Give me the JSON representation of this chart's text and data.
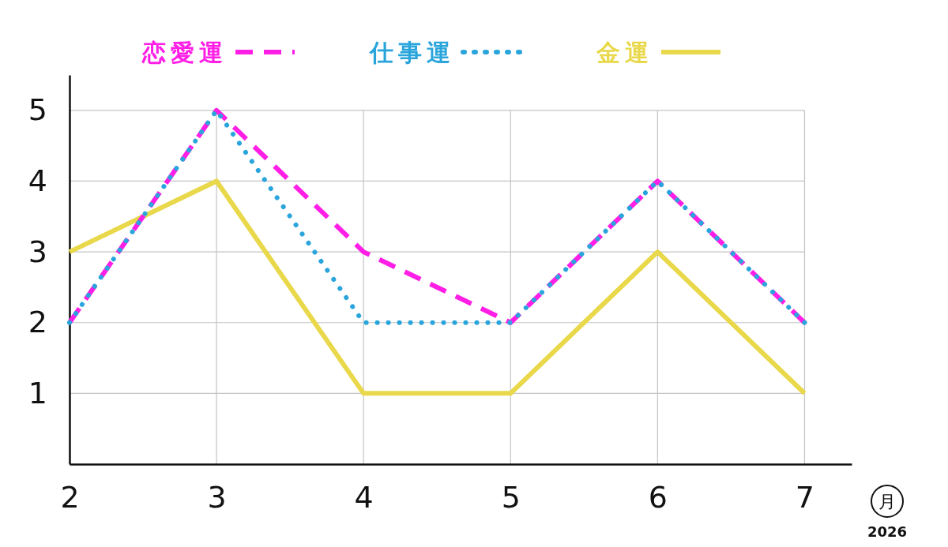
{
  "chart_data": {
    "type": "line",
    "xlabel": "月",
    "annotations": [
      "2026"
    ],
    "x": [
      2,
      3,
      4,
      5,
      6,
      7
    ],
    "xlim": [
      2,
      7.32
    ],
    "xticks": [
      2,
      3,
      4,
      5,
      6,
      7
    ],
    "ylim": [
      0,
      5.5
    ],
    "yticks": [
      1,
      2,
      3,
      4,
      5
    ],
    "grid": true,
    "legend": "top",
    "series": [
      {
        "name": "恋愛運",
        "color": "#ff1ee6",
        "line_style": "dashed",
        "values": [
          2,
          5,
          3,
          2,
          4,
          2
        ]
      },
      {
        "name": "仕事運",
        "color": "#2aa5dc",
        "line_style": "dotted",
        "values": [
          2,
          5,
          2,
          2,
          4,
          2
        ]
      },
      {
        "name": "金運",
        "color": "#e8d84a",
        "line_style": "solid",
        "values": [
          3,
          4,
          1,
          1,
          3,
          1
        ]
      }
    ]
  }
}
